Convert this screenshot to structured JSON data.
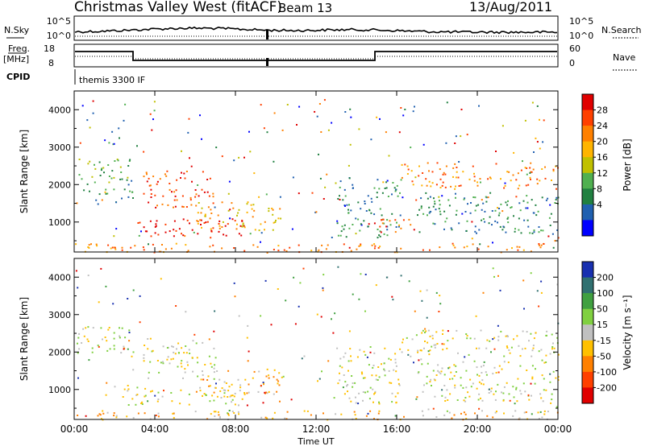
{
  "header": {
    "title": "Christmas Valley West (fitACF)",
    "beam": "Beam 13",
    "date": "13/Aug/2011"
  },
  "top_panels": {
    "nsky_label": "N.Sky",
    "nsky_ticks": [
      "10^5",
      "10^0"
    ],
    "nsearch_label": "N.Search",
    "nsearch_ticks": [
      "10^5",
      "10^0"
    ],
    "freq_label": "Freq.",
    "freq_unit": "[MHz]",
    "freq_ticks": [
      "18",
      "8"
    ],
    "nave_label": "Nave",
    "nave_ticks": [
      "60",
      "0"
    ],
    "cpid_label": "CPID",
    "cpid_value": "themis 3300 IF"
  },
  "chart_data": [
    {
      "type": "heatmap",
      "name": "power-panel",
      "ylabel": "Slant Range [km]",
      "xlabel": "",
      "xlim": [
        0,
        24
      ],
      "ylim": [
        200,
        4500
      ],
      "yticks": [
        1000,
        2000,
        3000,
        4000
      ],
      "xticks": [
        "00:00",
        "04:00",
        "08:00",
        "12:00",
        "16:00",
        "20:00",
        "00:00"
      ],
      "colorbar": {
        "label": "Power [dB]",
        "ticks": [
          "28",
          "24",
          "20",
          "16",
          "12",
          "8",
          "4"
        ],
        "colors": [
          "#e00000",
          "#ff4000",
          "#ff8000",
          "#ffb400",
          "#c0c000",
          "#50b050",
          "#208040",
          "#2060b0",
          "#0000ff"
        ]
      },
      "regions": [
        {
          "t0": 0.1,
          "t1": 2.9,
          "r0": 2000,
          "r1": 2700,
          "level": 3
        },
        {
          "t0": 0.3,
          "t1": 2.9,
          "r0": 1500,
          "r1": 1900,
          "level": 2
        },
        {
          "t0": 3.4,
          "t1": 7.0,
          "r0": 1400,
          "r1": 2400,
          "level": 7
        },
        {
          "t0": 2.3,
          "t1": 8.5,
          "r0": 600,
          "r1": 1100,
          "level": 8
        },
        {
          "t0": 6.0,
          "t1": 10.3,
          "r0": 800,
          "r1": 1600,
          "level": 5
        },
        {
          "t0": 0.0,
          "t1": 24.0,
          "r0": 200,
          "r1": 450,
          "level": 6
        },
        {
          "t0": 13.0,
          "t1": 16.2,
          "r0": 600,
          "r1": 2200,
          "level": 2
        },
        {
          "t0": 16.2,
          "t1": 24.0,
          "r0": 1900,
          "r1": 2600,
          "level": 6
        },
        {
          "t0": 14.5,
          "t1": 17.0,
          "r0": 700,
          "r1": 1100,
          "level": 7
        },
        {
          "t0": 17.0,
          "t1": 24.0,
          "r0": 700,
          "r1": 1800,
          "level": 2
        },
        {
          "t0": 13.3,
          "t1": 13.8,
          "r0": 3800,
          "r1": 4100,
          "level": 1
        },
        {
          "t0": 16.2,
          "t1": 16.8,
          "r0": 3800,
          "r1": 4100,
          "level": 1
        }
      ]
    },
    {
      "type": "heatmap",
      "name": "velocity-panel",
      "ylabel": "Slant Range [km]",
      "xlabel": "Time UT",
      "xlim": [
        0,
        24
      ],
      "ylim": [
        200,
        4500
      ],
      "yticks": [
        1000,
        2000,
        3000,
        4000
      ],
      "xticks": [
        "00:00",
        "04:00",
        "08:00",
        "12:00",
        "16:00",
        "20:00",
        "00:00"
      ],
      "colorbar": {
        "label": "Velocity [m s⁻¹]",
        "ticks": [
          "200",
          "100",
          "50",
          "15",
          "-15",
          "-50",
          "-100",
          "-200"
        ],
        "colors": [
          "#1830b0",
          "#307070",
          "#40a040",
          "#80d040",
          "#c0c0c0",
          "#ffc000",
          "#ff8000",
          "#ff4000",
          "#e00000"
        ]
      },
      "regions": [
        {
          "t0": 0.1,
          "t1": 2.9,
          "r0": 1900,
          "r1": 2700,
          "level": 4
        },
        {
          "t0": 3.4,
          "t1": 7.0,
          "r0": 1300,
          "r1": 2400,
          "level": 4
        },
        {
          "t0": 2.3,
          "t1": 8.5,
          "r0": 600,
          "r1": 1100,
          "level": 4
        },
        {
          "t0": 6.0,
          "t1": 10.3,
          "r0": 800,
          "r1": 1600,
          "level": 3
        },
        {
          "t0": 0.0,
          "t1": 24.0,
          "r0": 200,
          "r1": 450,
          "level": 3
        },
        {
          "t0": 13.0,
          "t1": 16.2,
          "r0": 600,
          "r1": 2200,
          "level": 4
        },
        {
          "t0": 16.2,
          "t1": 24.0,
          "r0": 1900,
          "r1": 2600,
          "level": 4
        },
        {
          "t0": 17.0,
          "t1": 24.0,
          "r0": 700,
          "r1": 1800,
          "level": 4
        }
      ]
    }
  ]
}
